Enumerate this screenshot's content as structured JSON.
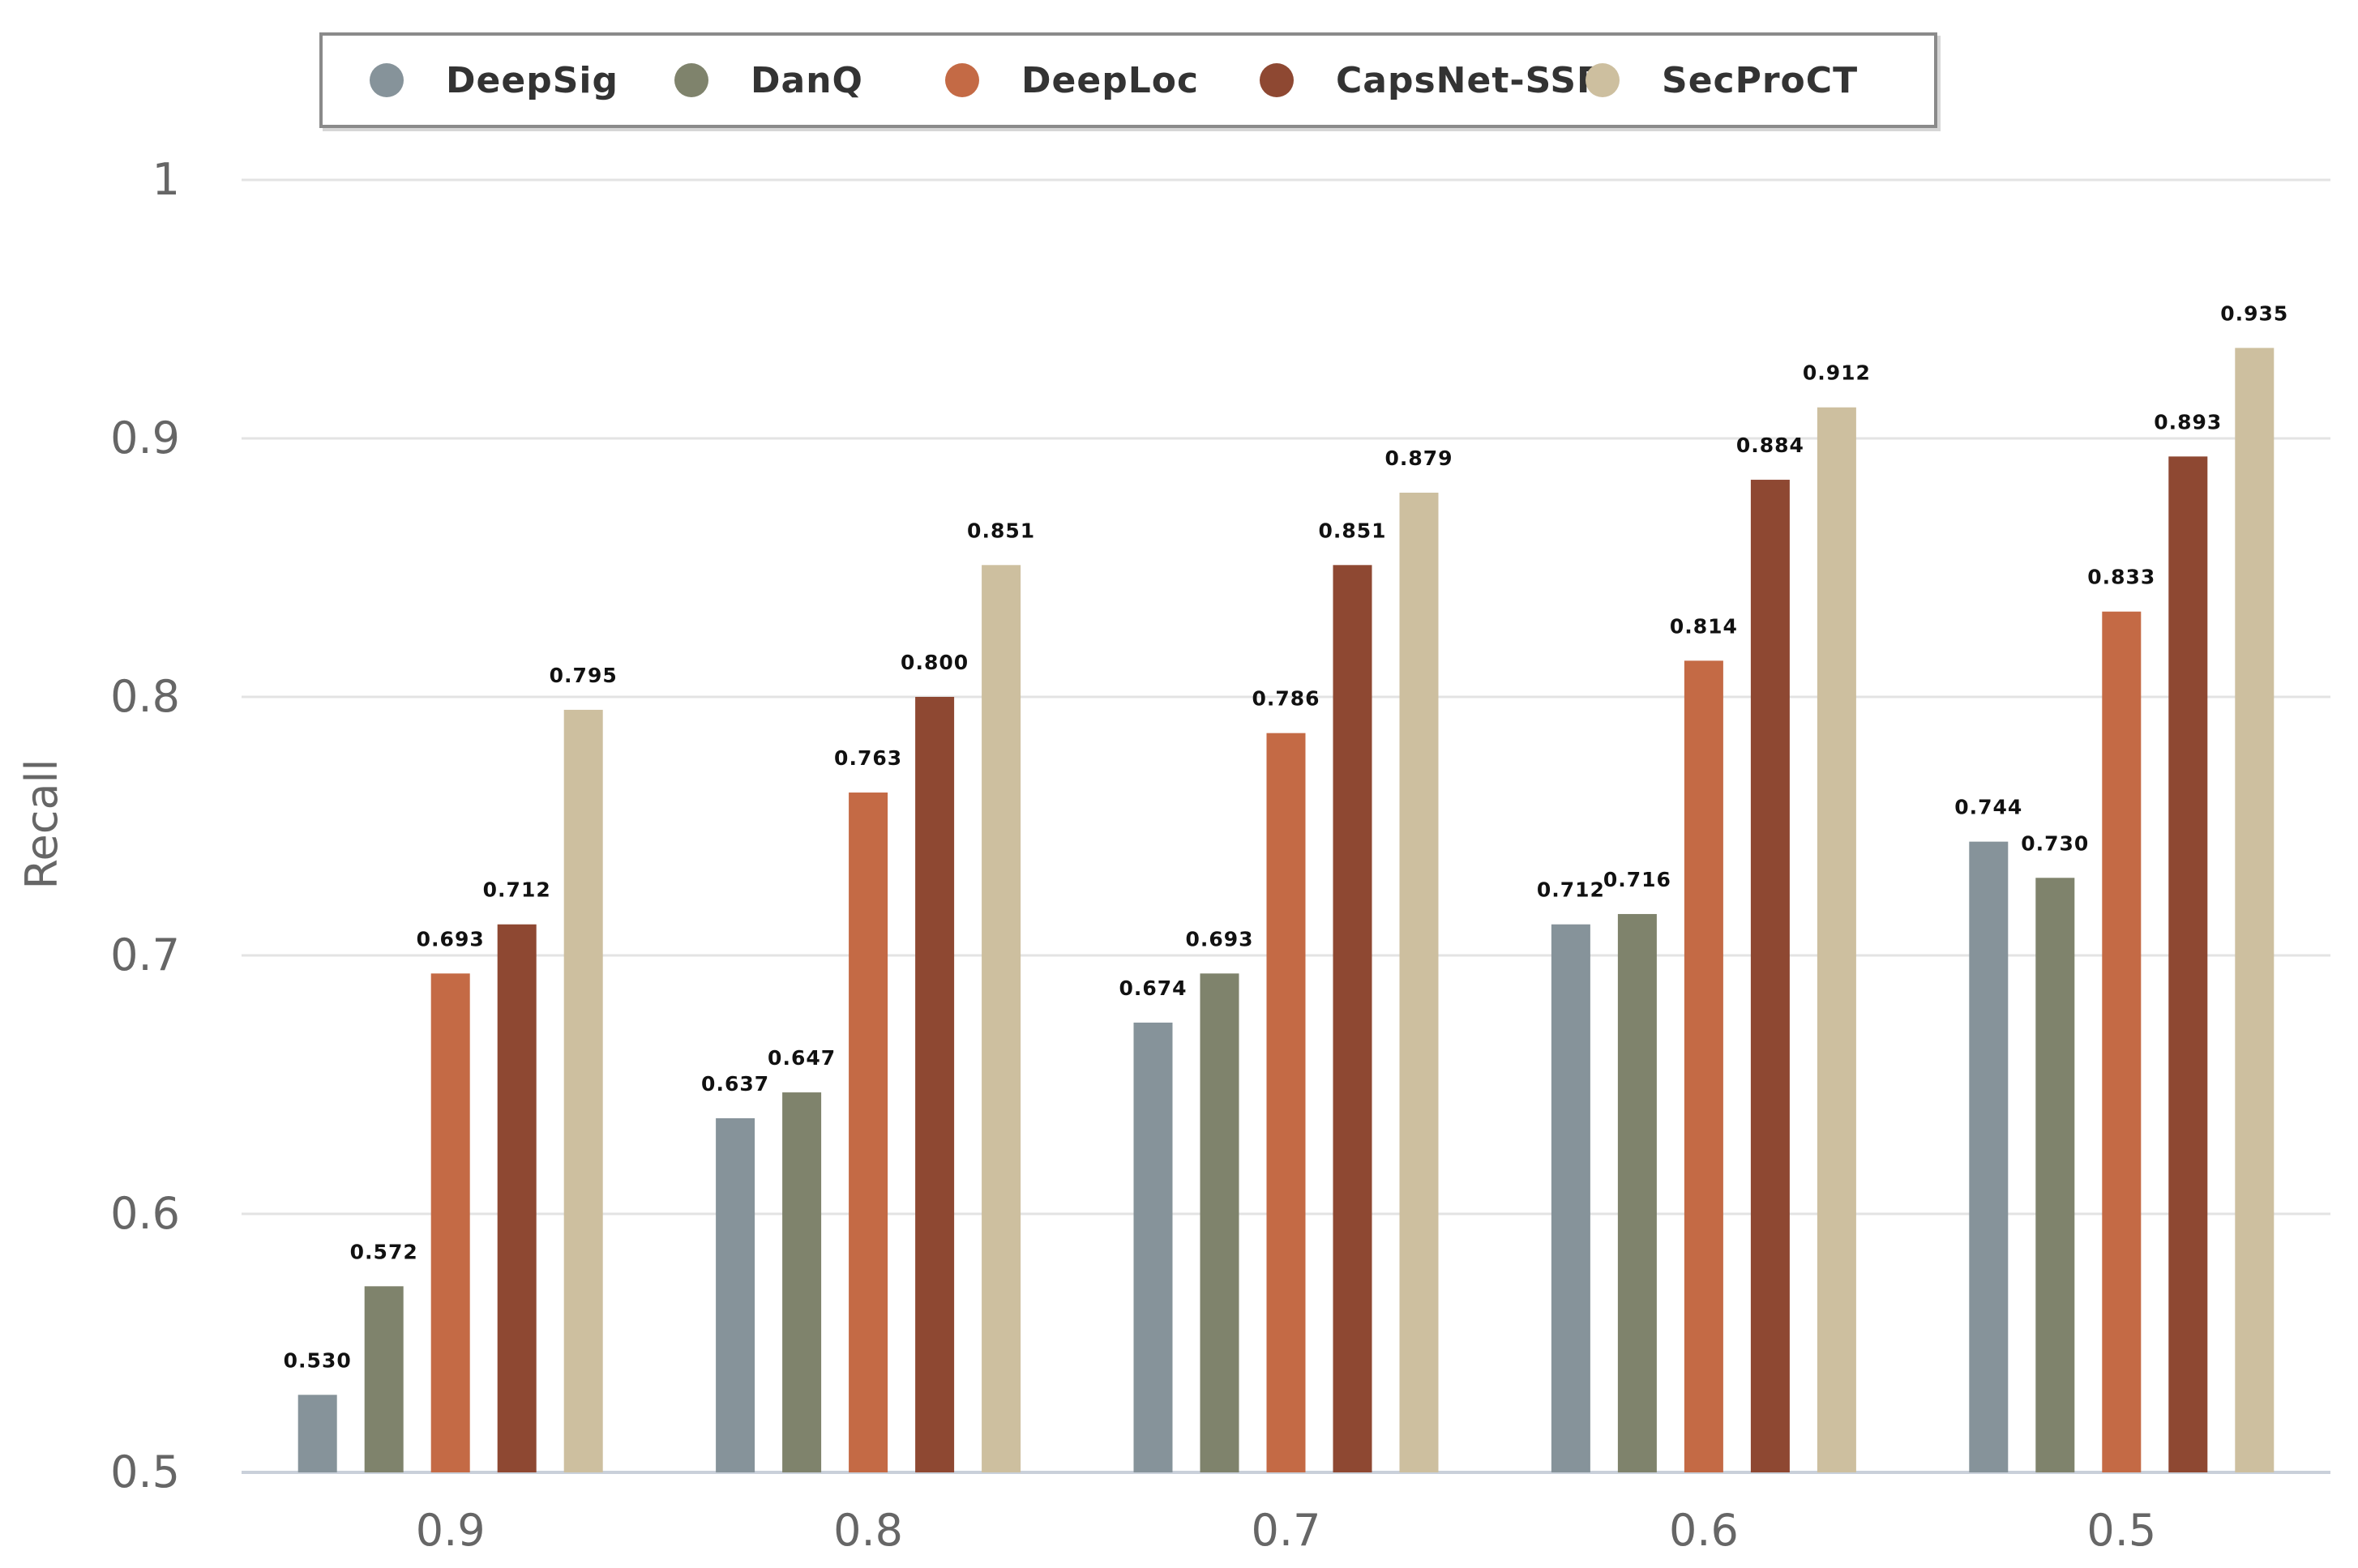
{
  "chart_data": {
    "type": "bar",
    "title": "",
    "xlabel": "",
    "ylabel": "Recall",
    "ylim": [
      0.5,
      1
    ],
    "yticks": [
      "0.5",
      "0.6",
      "0.7",
      "0.8",
      "0.9",
      "1"
    ],
    "grid": true,
    "legend_position": "top-center",
    "categories": [
      "0.9",
      "0.8",
      "0.7",
      "0.6",
      "0.5"
    ],
    "series": [
      {
        "name": "DeepSig",
        "color": "#86939a",
        "values": [
          0.53,
          0.637,
          0.674,
          0.712,
          0.744
        ],
        "labels": [
          "0.530",
          "0.637",
          "0.674",
          "0.712",
          "0.744"
        ]
      },
      {
        "name": "DanQ",
        "color": "#7f836c",
        "values": [
          0.572,
          0.647,
          0.693,
          0.716,
          0.73
        ],
        "labels": [
          "0.572",
          "0.647",
          "0.693",
          "0.716",
          "0.730"
        ]
      },
      {
        "name": "DeepLoc",
        "color": "#c46a45",
        "values": [
          0.693,
          0.763,
          0.786,
          0.814,
          0.833
        ],
        "labels": [
          "0.693",
          "0.763",
          "0.786",
          "0.814",
          "0.833"
        ]
      },
      {
        "name": "CapsNet-SSP",
        "color": "#8e4832",
        "values": [
          0.712,
          0.8,
          0.851,
          0.884,
          0.893
        ],
        "labels": [
          "0.712",
          "0.800",
          "0.851",
          "0.884",
          "0.893"
        ]
      },
      {
        "name": "SecProCT",
        "color": "#cdbf9f",
        "values": [
          0.795,
          0.851,
          0.879,
          0.912,
          0.935
        ],
        "labels": [
          "0.795",
          "0.851",
          "0.879",
          "0.912",
          "0.935"
        ]
      }
    ]
  }
}
